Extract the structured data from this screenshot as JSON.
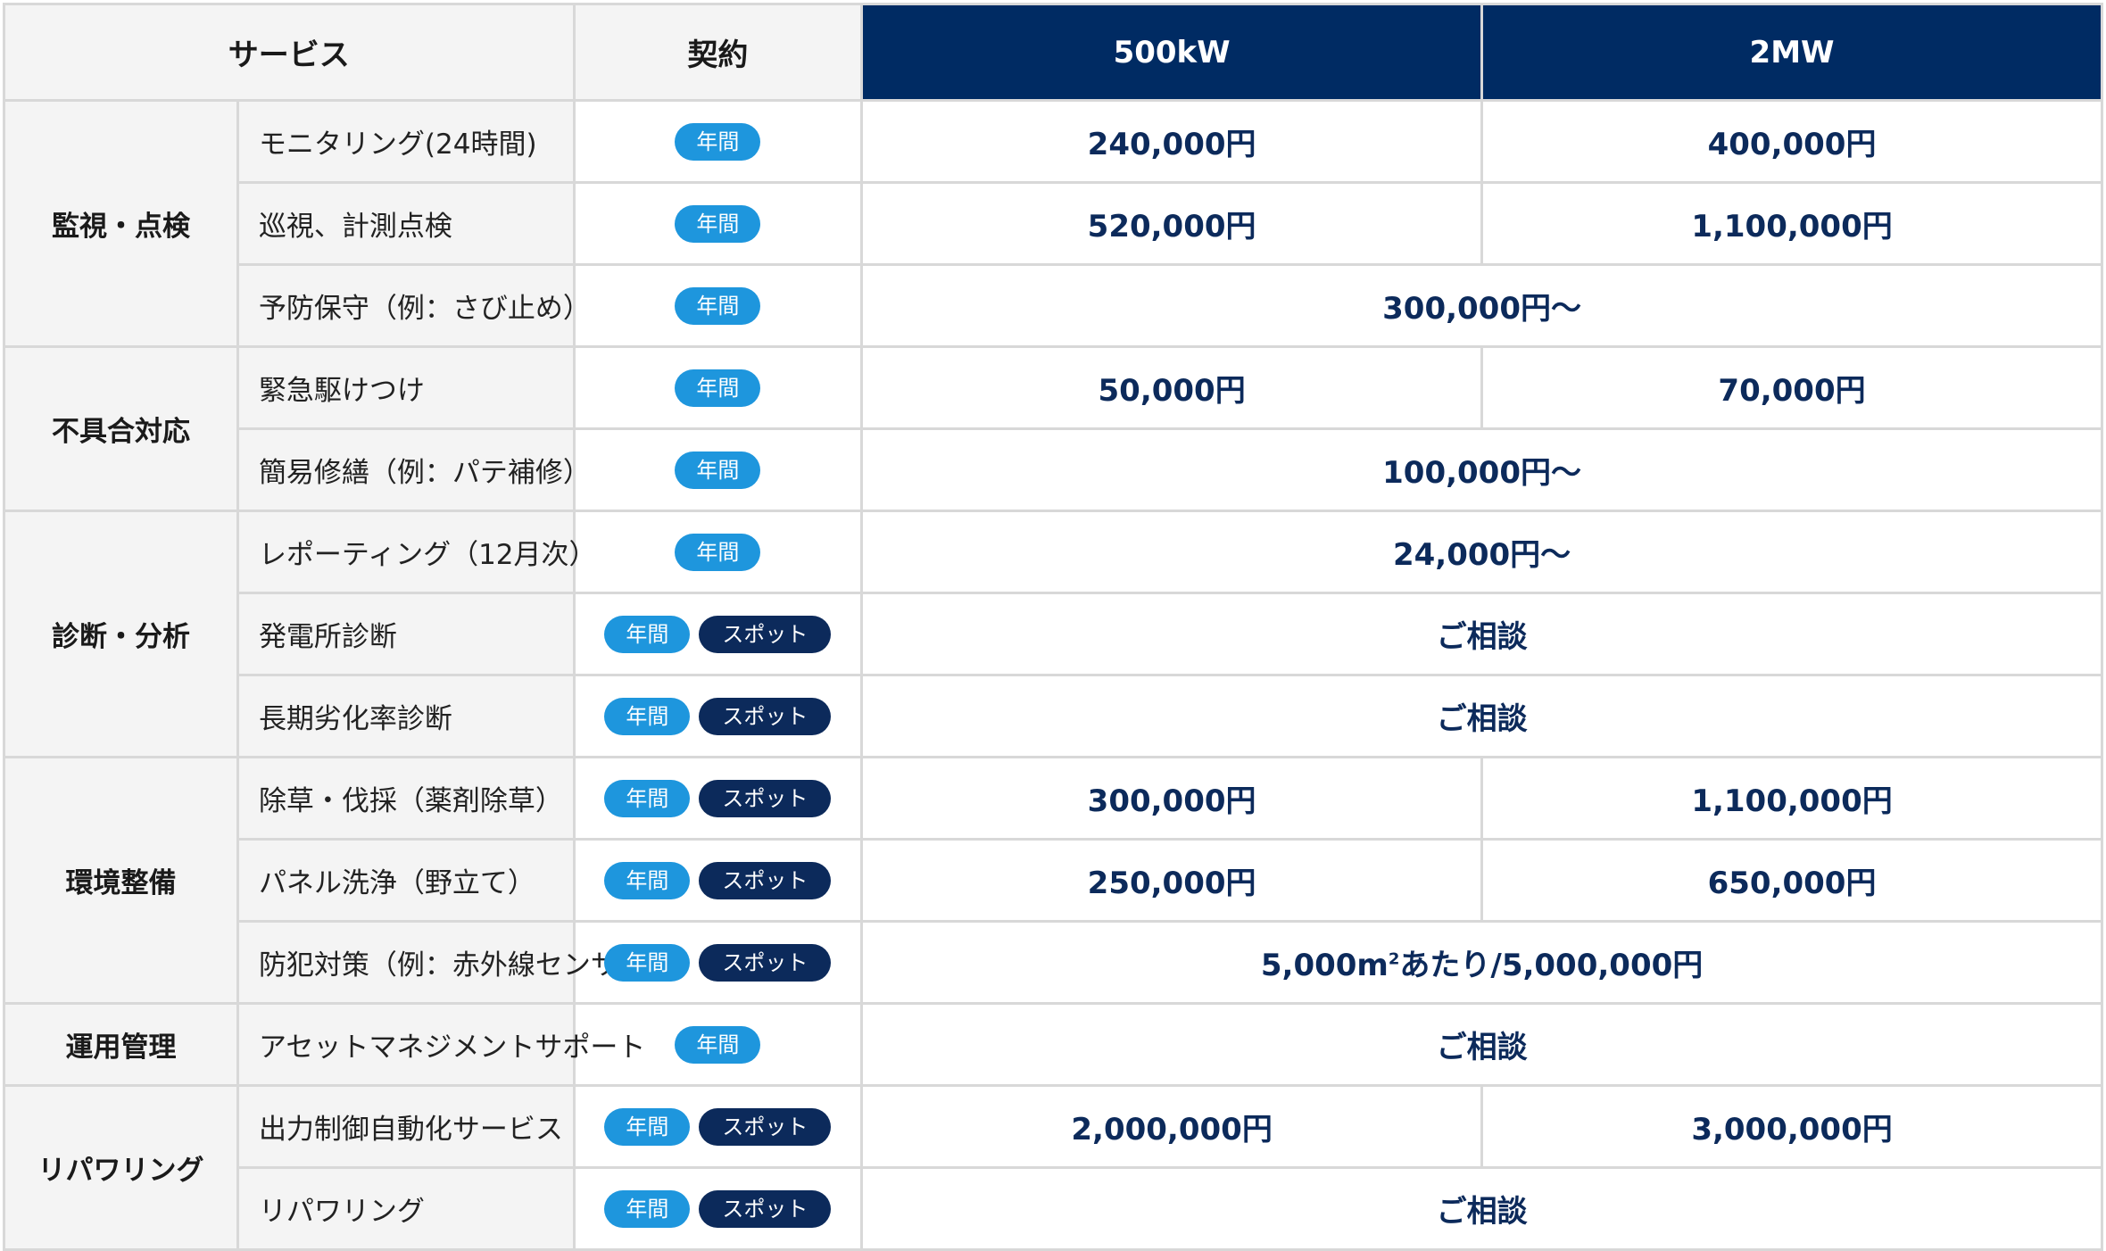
{
  "header": {
    "service": "サービス",
    "contract": "契約",
    "plan1": "500kW",
    "plan2": "2MW"
  },
  "badges": {
    "annual": "年間",
    "spot": "スポット"
  },
  "rows": [
    {
      "category": "監視・点検",
      "service": "モニタリング(24時間)",
      "contract": [
        "annual"
      ],
      "price_500kw": "240,000円",
      "price_2mw": "400,000円"
    },
    {
      "service": "巡視、計測点検",
      "contract": [
        "annual"
      ],
      "price_500kw": "520,000円",
      "price_2mw": "1,100,000円"
    },
    {
      "service": "予防保守（例：さび止め）",
      "contract": [
        "annual"
      ],
      "price_combined": "300,000円〜"
    },
    {
      "category": "不具合対応",
      "service": "緊急駆けつけ",
      "contract": [
        "annual"
      ],
      "price_500kw": "50,000円",
      "price_2mw": "70,000円"
    },
    {
      "service": "簡易修繕（例：パテ補修）",
      "contract": [
        "annual"
      ],
      "price_combined": "100,000円〜"
    },
    {
      "category": "診断・分析",
      "service": "レポーティング（12月次）",
      "contract": [
        "annual"
      ],
      "price_combined": "24,000円〜"
    },
    {
      "service": "発電所診断",
      "contract": [
        "annual",
        "spot"
      ],
      "price_combined": "ご相談"
    },
    {
      "service": "長期劣化率診断",
      "contract": [
        "annual",
        "spot"
      ],
      "price_combined": "ご相談"
    },
    {
      "category": "環境整備",
      "service": "除草・伐採（薬剤除草）",
      "contract": [
        "annual",
        "spot"
      ],
      "price_500kw": "300,000円",
      "price_2mw": "1,100,000円"
    },
    {
      "service": "パネル洗浄（野立て）",
      "contract": [
        "annual",
        "spot"
      ],
      "price_500kw": "250,000円",
      "price_2mw": "650,000円"
    },
    {
      "service": "防犯対策（例：赤外線センサー）",
      "contract": [
        "annual",
        "spot"
      ],
      "price_combined_parts": [
        "5,000m",
        "2",
        "あたり/5,000,000円"
      ]
    },
    {
      "category": "運用管理",
      "service": "アセットマネジメントサポート",
      "contract": [
        "annual"
      ],
      "price_combined": "ご相談"
    },
    {
      "category": "リパワリング",
      "service": "出力制御自動化サービス",
      "contract": [
        "annual",
        "spot"
      ],
      "price_500kw": "2,000,000円",
      "price_2mw": "3,000,000円"
    },
    {
      "service": "リパワリング",
      "contract": [
        "annual",
        "spot"
      ],
      "price_combined": "ご相談"
    }
  ]
}
